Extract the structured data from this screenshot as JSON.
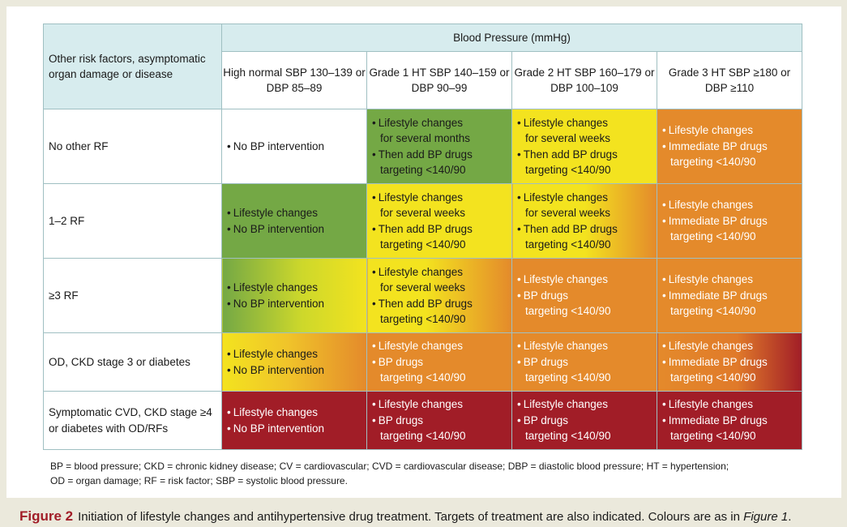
{
  "header": {
    "risk_label_1": "Other risk factors,",
    "risk_label_2": "asymptomatic organ damage",
    "risk_label_3": "or disease",
    "bp_title": "Blood Pressure (mmHg)",
    "columns": [
      {
        "name": "High normal",
        "sbp": "SBP 130–139",
        "dbp": "or DBP 85–89"
      },
      {
        "name": "Grade 1 HT",
        "sbp": "SBP 140–159",
        "dbp": "or DBP 90–99"
      },
      {
        "name": "Grade 2 HT",
        "sbp": "SBP 160–179",
        "dbp": "or DBP 100–109"
      },
      {
        "name": "Grade 3 HT",
        "sbp": "SBP ≥180",
        "dbp": "or DBP ≥110"
      }
    ]
  },
  "rows": [
    {
      "label": [
        "No other RF"
      ]
    },
    {
      "label": [
        "1–2 RF"
      ]
    },
    {
      "label": [
        "≥3 RF"
      ]
    },
    {
      "label": [
        "OD, CKD stage 3 or diabetes"
      ]
    },
    {
      "label": [
        "Symptomatic CVD,",
        "CKD stage ≥4 or",
        "diabetes with OD/RFs"
      ]
    }
  ],
  "bullet": "•",
  "cells": {
    "r0c0": [
      "No BP intervention"
    ],
    "r0c1": [
      "Lifestyle changes",
      "for several months",
      "Then add BP drugs",
      "targeting <140/90"
    ],
    "r0c2": [
      "Lifestyle changes",
      "for several weeks",
      "Then add BP drugs",
      "targeting <140/90"
    ],
    "r0c3": [
      "Lifestyle changes",
      "Immediate BP drugs",
      "targeting <140/90"
    ],
    "r1c0": [
      "Lifestyle changes",
      "No BP intervention"
    ],
    "r1c1": [
      "Lifestyle changes",
      "for several weeks",
      "Then add BP drugs",
      "targeting <140/90"
    ],
    "r1c2": [
      "Lifestyle changes",
      "for several weeks",
      "Then add BP drugs",
      "targeting <140/90"
    ],
    "r1c3": [
      "Lifestyle changes",
      "Immediate BP drugs",
      "targeting <140/90"
    ],
    "r2c0": [
      "Lifestyle changes",
      "No BP intervention"
    ],
    "r2c1": [
      "Lifestyle changes",
      "for several weeks",
      "Then add BP drugs",
      "targeting <140/90"
    ],
    "r2c2": [
      "Lifestyle changes",
      "BP drugs",
      "targeting <140/90"
    ],
    "r2c3": [
      "Lifestyle changes",
      "Immediate BP drugs",
      "targeting <140/90"
    ],
    "r3c0": [
      "Lifestyle changes",
      "No BP intervention"
    ],
    "r3c1": [
      "Lifestyle changes",
      "BP drugs",
      "targeting <140/90"
    ],
    "r3c2": [
      "Lifestyle changes",
      "BP drugs",
      "targeting <140/90"
    ],
    "r3c3": [
      "Lifestyle changes",
      "Immediate BP drugs",
      "targeting <140/90"
    ],
    "r4c0": [
      "Lifestyle changes",
      "No BP intervention"
    ],
    "r4c1": [
      "Lifestyle changes",
      "BP drugs",
      "targeting <140/90"
    ],
    "r4c2": [
      "Lifestyle changes",
      "BP drugs",
      "targeting <140/90"
    ],
    "r4c3": [
      "Lifestyle changes",
      "Immediate BP drugs",
      "targeting <140/90"
    ]
  },
  "colors": {
    "green": "#74a845",
    "yellow": "#f3e31f",
    "orange": "#e48a2b",
    "red": "#a11d27",
    "header_fill": "#d7ecee"
  },
  "abbreviations": [
    "BP = blood pressure;  CKD = chronic kidney disease; CV = cardiovascular; CVD = cardiovascular disease; DBP = diastolic blood pressure; HT = hypertension;",
    "OD = organ damage; RF = risk factor; SBP = systolic blood pressure."
  ],
  "caption": {
    "figure_label": "Figure 2",
    "text": "Initiation of lifestyle changes and antihypertensive drug treatment. Targets of treatment are also indicated. Colours are as in",
    "ref": "Figure 1",
    "end": "."
  }
}
